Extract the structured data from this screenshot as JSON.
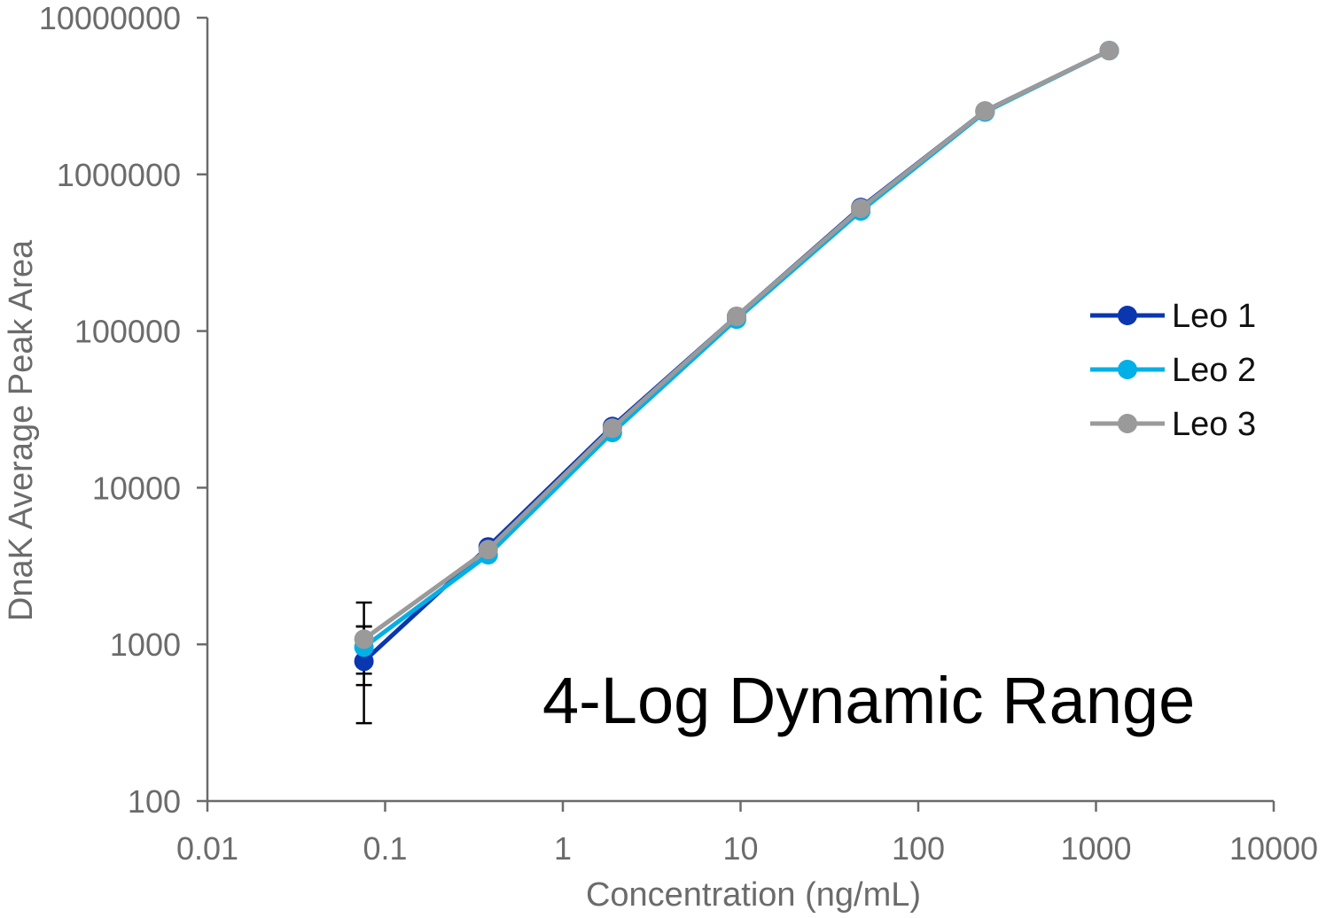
{
  "chart_data": {
    "type": "line",
    "title": "",
    "xlabel": "Concentration (ng/mL)",
    "ylabel": "DnaK Average Peak Area",
    "x_scale": "log",
    "y_scale": "log",
    "xlim": [
      0.01,
      10000
    ],
    "ylim": [
      100,
      10000000
    ],
    "x_ticks": [
      "0.01",
      "0.1",
      "1",
      "10",
      "100",
      "1000",
      "10000"
    ],
    "y_ticks": [
      "100",
      "1000",
      "10000",
      "100000",
      "1000000",
      "10000000"
    ],
    "grid": false,
    "legend_position": "right",
    "annotation": "4-Log Dynamic Range",
    "x": [
      0.076,
      0.38,
      1.9,
      9.5,
      47.5,
      237.5,
      1187.5
    ],
    "series": [
      {
        "name": "Leo 1",
        "color": "#0a36b0",
        "values": [
          780,
          4190,
          24600,
          124000,
          615000,
          2540000,
          6170000
        ],
        "error_low": [
          314,
          null,
          null,
          null,
          null,
          null,
          null
        ],
        "error_high": [
          1300,
          null,
          null,
          null,
          null,
          null,
          null
        ]
      },
      {
        "name": "Leo 2",
        "color": "#00b0e6",
        "values": [
          960,
          3730,
          22500,
          119000,
          584000,
          2500000,
          6170000
        ],
        "error_low": [
          650,
          null,
          null,
          null,
          null,
          null,
          null
        ],
        "error_high": [
          1300,
          null,
          null,
          null,
          null,
          null,
          null
        ]
      },
      {
        "name": "Leo 3",
        "color": "#9a9a9a",
        "values": [
          1080,
          4030,
          24000,
          124000,
          607000,
          2540000,
          6170000
        ],
        "error_low": [
          550,
          null,
          null,
          null,
          null,
          null,
          null
        ],
        "error_high": [
          1850,
          null,
          null,
          null,
          null,
          null,
          null
        ]
      }
    ]
  }
}
